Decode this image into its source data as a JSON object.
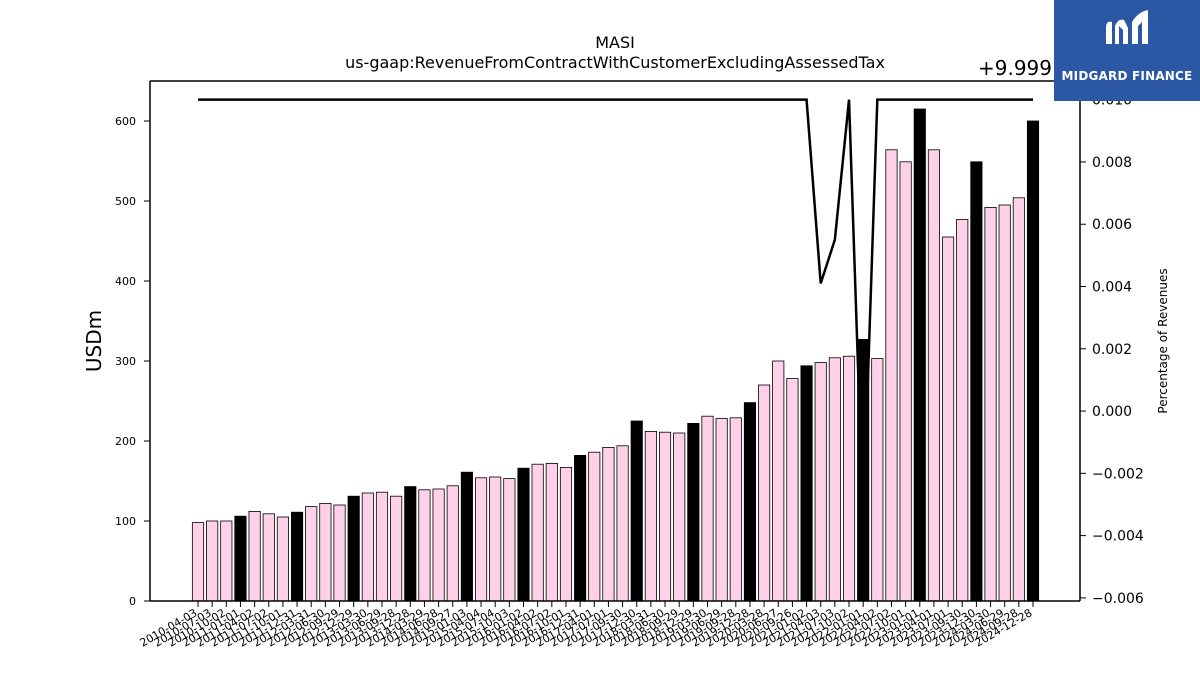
{
  "brand": {
    "name": "MIDGARD FINANCE",
    "bg_color": "#2b57a5",
    "icon": "midgard-m-logo-icon"
  },
  "colors": {
    "annual_bar": "#000000",
    "quarter_bar": "#ffd1e8",
    "bar_edge": "#000000",
    "line": "#000000"
  },
  "chart_data": {
    "type": "bar",
    "title": "MASI",
    "subtitle": "us-gaap:RevenueFromContractWithCustomerExcludingAssessedTax",
    "ylabel": "USDm",
    "y2label": "Percentage of Revenues",
    "y2_offset_label": "+9.999",
    "ylim": [
      0,
      650
    ],
    "yticks": [
      0,
      100,
      200,
      300,
      400,
      500,
      600
    ],
    "y2lim": [
      -0.0061,
      0.0106
    ],
    "y2ticks": [
      -0.006,
      -0.004,
      -0.002,
      0.0,
      0.002,
      0.004,
      0.006,
      0.008,
      0.01
    ],
    "y2tick_labels": [
      "−0.006",
      "−0.004",
      "−0.002",
      "0.000",
      "0.002",
      "0.004",
      "0.006",
      "0.008",
      "0.010"
    ],
    "grid": false,
    "categories": [
      "2010-04-03",
      "2010-07-03",
      "2010-10-02",
      "2011-01-01",
      "2011-04-02",
      "2011-07-02",
      "2011-10-01",
      "2011-12-31",
      "2012-03-31",
      "2012-06-30",
      "2012-09-29",
      "2012-12-29",
      "2013-03-30",
      "2013-06-29",
      "2013-09-28",
      "2013-12-28",
      "2014-03-29",
      "2014-06-28",
      "2014-09-27",
      "2015-01-03",
      "2015-04-04",
      "2015-07-04",
      "2015-10-03",
      "2016-01-02",
      "2016-04-02",
      "2016-07-02",
      "2016-10-01",
      "2016-12-31",
      "2017-04-01",
      "2017-07-01",
      "2017-09-30",
      "2017-12-30",
      "2018-03-31",
      "2018-06-30",
      "2018-09-29",
      "2018-12-29",
      "2019-03-30",
      "2019-06-29",
      "2019-09-28",
      "2019-12-28",
      "2020-03-28",
      "2020-06-27",
      "2020-09-26",
      "2021-01-02",
      "2021-04-03",
      "2021-07-03",
      "2021-10-02",
      "2022-01-01",
      "2022-04-02",
      "2022-07-02",
      "2022-10-01",
      "2023-01-01",
      "2023-04-01",
      "2023-07-01",
      "2023-09-30",
      "2023-12-30",
      "2024-03-30",
      "2024-06-29",
      "2024-09-28",
      "2024-12-28"
    ],
    "series": [
      {
        "values": [
          98,
          100,
          100,
          106,
          112,
          109,
          105,
          111,
          118,
          122,
          120,
          131,
          135,
          136,
          131,
          143,
          139,
          140,
          144,
          161,
          154,
          155,
          153,
          166,
          171,
          172,
          167,
          182,
          186,
          192,
          194,
          225,
          212,
          211,
          210,
          222,
          231,
          228,
          229,
          248,
          270,
          300,
          278,
          294,
          298,
          304,
          306,
          327,
          303,
          564,
          549,
          615,
          564,
          455,
          477,
          549,
          492,
          495,
          504,
          600
        ],
        "kind": [
          "Q",
          "Q",
          "Q",
          "FY",
          "Q",
          "Q",
          "Q",
          "FY",
          "Q",
          "Q",
          "Q",
          "FY",
          "Q",
          "Q",
          "Q",
          "FY",
          "Q",
          "Q",
          "Q",
          "FY",
          "Q",
          "Q",
          "Q",
          "FY",
          "Q",
          "Q",
          "Q",
          "FY",
          "Q",
          "Q",
          "Q",
          "FY",
          "Q",
          "Q",
          "Q",
          "FY",
          "Q",
          "Q",
          "Q",
          "FY",
          "Q",
          "Q",
          "Q",
          "FY",
          "Q",
          "Q",
          "Q",
          "FY",
          "Q",
          "Q",
          "Q",
          "FY",
          "Q",
          "Q",
          "Q",
          "FY",
          "Q",
          "Q",
          "Q",
          "FY"
        ]
      },
      {
        "axis": "right",
        "type": "line",
        "values": [
          0.01,
          0.01,
          0.01,
          0.01,
          0.01,
          0.01,
          0.01,
          0.01,
          0.01,
          0.01,
          0.01,
          0.01,
          0.01,
          0.01,
          0.01,
          0.01,
          0.01,
          0.01,
          0.01,
          0.01,
          0.01,
          0.01,
          0.01,
          0.01,
          0.01,
          0.01,
          0.01,
          0.01,
          0.01,
          0.01,
          0.01,
          0.01,
          0.01,
          0.01,
          0.01,
          0.01,
          0.01,
          0.01,
          0.01,
          0.01,
          0.01,
          0.01,
          0.01,
          0.01,
          0.0041,
          0.0055,
          0.01,
          -0.0035,
          0.01,
          0.01,
          0.01,
          0.01,
          0.01,
          0.01,
          0.01,
          0.01,
          0.01,
          0.01,
          0.01,
          0.01
        ]
      }
    ]
  }
}
